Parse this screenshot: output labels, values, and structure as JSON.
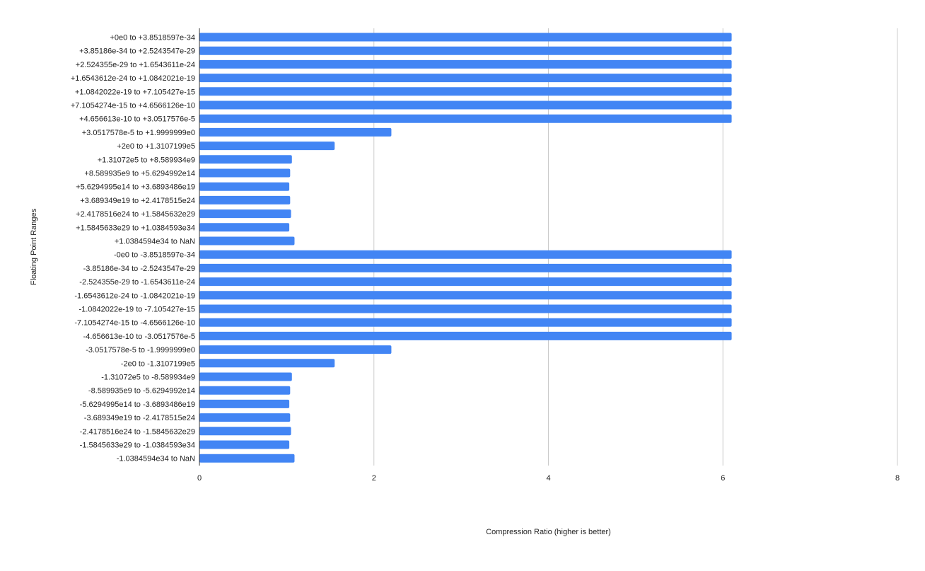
{
  "chart_data": {
    "type": "bar",
    "orientation": "horizontal",
    "title": "",
    "xlabel": "Compression Ratio (higher is better)",
    "ylabel": "Floating Point Ranges",
    "xlim": [
      0,
      8
    ],
    "xticks": [
      "0",
      "2",
      "4",
      "6",
      "8"
    ],
    "grid": "vertical",
    "bar_color": "#4285F4",
    "categories": [
      "+0e0 to +3.8518597e-34",
      "+3.85186e-34 to +2.5243547e-29",
      "+2.524355e-29 to +1.6543611e-24",
      "+1.6543612e-24 to +1.0842021e-19",
      "+1.0842022e-19 to +7.105427e-15",
      "+7.1054274e-15 to +4.6566126e-10",
      "+4.656613e-10 to +3.0517576e-5",
      "+3.0517578e-5 to +1.9999999e0",
      "+2e0 to +1.3107199e5",
      "+1.31072e5 to +8.589934e9",
      "+8.589935e9 to +5.6294992e14",
      "+5.6294995e14 to +3.6893486e19",
      "+3.689349e19 to +2.4178515e24",
      "+2.4178516e24 to +1.5845632e29",
      "+1.5845633e29 to +1.0384593e34",
      "+1.0384594e34 to NaN",
      "-0e0 to -3.8518597e-34",
      "-3.85186e-34 to -2.5243547e-29",
      "-2.524355e-29 to -1.6543611e-24",
      "-1.6543612e-24 to -1.0842021e-19",
      "-1.0842022e-19 to -7.105427e-15",
      "-7.1054274e-15 to -4.6566126e-10",
      "-4.656613e-10 to -3.0517576e-5",
      "-3.0517578e-5 to -1.9999999e0",
      "-2e0 to -1.3107199e5",
      "-1.31072e5 to -8.589934e9",
      "-8.589935e9 to -5.6294992e14",
      "-5.6294995e14 to -3.6893486e19",
      "-3.689349e19 to -2.4178515e24",
      "-2.4178516e24 to -1.5845632e29",
      "-1.5845633e29 to -1.0384593e34",
      "-1.0384594e34 to NaN"
    ],
    "values": [
      6.1,
      6.1,
      6.1,
      6.1,
      6.1,
      6.1,
      6.1,
      2.2,
      1.55,
      1.06,
      1.04,
      1.03,
      1.04,
      1.05,
      1.03,
      1.09,
      6.1,
      6.1,
      6.1,
      6.1,
      6.1,
      6.1,
      6.1,
      2.2,
      1.55,
      1.06,
      1.04,
      1.03,
      1.04,
      1.05,
      1.03,
      1.09
    ]
  }
}
